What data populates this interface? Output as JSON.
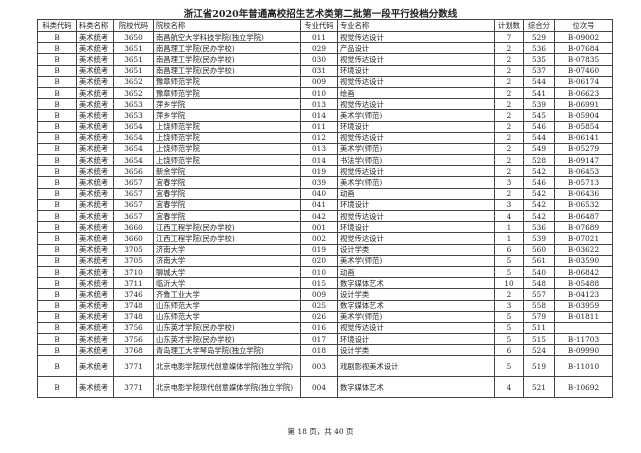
{
  "title": "浙江省2020年普通高校招生艺术类第二批第一段平行投档分数线",
  "headers": [
    "科类代码",
    "科类名称",
    "院校代码",
    "院校名称",
    "专业代码",
    "专业名称",
    "计划数",
    "综合分",
    "位次号"
  ],
  "rows": [
    [
      "B",
      "美术统考",
      "3650",
      "南昌航空大学科技学院(独立学院)",
      "011",
      "视觉传达设计",
      "7",
      "529",
      "B-09002"
    ],
    [
      "B",
      "美术统考",
      "3651",
      "南昌理工学院(民办学校)",
      "029",
      "产品设计",
      "2",
      "536",
      "B-07684"
    ],
    [
      "B",
      "美术统考",
      "3651",
      "南昌理工学院(民办学校)",
      "030",
      "视觉传达设计",
      "2",
      "535",
      "B-07835"
    ],
    [
      "B",
      "美术统考",
      "3651",
      "南昌理工学院(民办学校)",
      "031",
      "环境设计",
      "2",
      "537",
      "B-07460"
    ],
    [
      "B",
      "美术统考",
      "3652",
      "豫章师范学院",
      "009",
      "视觉传达设计",
      "2",
      "544",
      "B-06174"
    ],
    [
      "B",
      "美术统考",
      "3652",
      "豫章师范学院",
      "010",
      "绘画",
      "2",
      "541",
      "B-06623"
    ],
    [
      "B",
      "美术统考",
      "3653",
      "萍乡学院",
      "013",
      "视觉传达设计",
      "2",
      "539",
      "B-06991"
    ],
    [
      "B",
      "美术统考",
      "3653",
      "萍乡学院",
      "014",
      "美术学(师范)",
      "2",
      "545",
      "B-05904"
    ],
    [
      "B",
      "美术统考",
      "3654",
      "上饶师范学院",
      "011",
      "环境设计",
      "2",
      "546",
      "B-05854"
    ],
    [
      "B",
      "美术统考",
      "3654",
      "上饶师范学院",
      "012",
      "视觉传达设计",
      "2",
      "544",
      "B-06141"
    ],
    [
      "B",
      "美术统考",
      "3654",
      "上饶师范学院",
      "013",
      "美术学(师范)",
      "2",
      "549",
      "B-05279"
    ],
    [
      "B",
      "美术统考",
      "3654",
      "上饶师范学院",
      "014",
      "书法学(师范)",
      "2",
      "528",
      "B-09147"
    ],
    [
      "B",
      "美术统考",
      "3656",
      "新余学院",
      "019",
      "视觉传达设计",
      "2",
      "542",
      "B-06453"
    ],
    [
      "B",
      "美术统考",
      "3657",
      "宜春学院",
      "039",
      "美术学(师范)",
      "3",
      "546",
      "B-05713"
    ],
    [
      "B",
      "美术统考",
      "3657",
      "宜春学院",
      "040",
      "动画",
      "2",
      "542",
      "B-06436"
    ],
    [
      "B",
      "美术统考",
      "3657",
      "宜春学院",
      "041",
      "环境设计",
      "3",
      "542",
      "B-06532"
    ],
    [
      "B",
      "美术统考",
      "3657",
      "宜春学院",
      "042",
      "视觉传达设计",
      "4",
      "542",
      "B-06487"
    ],
    [
      "B",
      "美术统考",
      "3660",
      "江西工程学院(民办学校)",
      "001",
      "环境设计",
      "1",
      "536",
      "B-07689"
    ],
    [
      "B",
      "美术统考",
      "3660",
      "江西工程学院(民办学校)",
      "002",
      "视觉传达设计",
      "1",
      "539",
      "B-07021"
    ],
    [
      "B",
      "美术统考",
      "3705",
      "济南大学",
      "019",
      "设计学类",
      "6",
      "560",
      "B-03622"
    ],
    [
      "B",
      "美术统考",
      "3705",
      "济南大学",
      "020",
      "美术学(师范)",
      "5",
      "561",
      "B-03590"
    ],
    [
      "B",
      "美术统考",
      "3710",
      "聊城大学",
      "010",
      "动画",
      "5",
      "540",
      "B-06842"
    ],
    [
      "B",
      "美术统考",
      "3711",
      "临沂大学",
      "015",
      "数字媒体艺术",
      "10",
      "548",
      "B-05488"
    ],
    [
      "B",
      "美术统考",
      "3746",
      "齐鲁工业大学",
      "009",
      "设计学类",
      "2",
      "557",
      "B-04123"
    ],
    [
      "B",
      "美术统考",
      "3748",
      "山东师范大学",
      "025",
      "数字媒体艺术",
      "3",
      "558",
      "B-03959"
    ],
    [
      "B",
      "美术统考",
      "3748",
      "山东师范大学",
      "026",
      "美术学(师范)",
      "5",
      "579",
      "B-01811"
    ],
    [
      "B",
      "美术统考",
      "3756",
      "山东英才学院(民办学校)",
      "016",
      "视觉传达设计",
      "5",
      "511",
      ""
    ],
    [
      "B",
      "美术统考",
      "3756",
      "山东英才学院(民办学校)",
      "017",
      "环境设计",
      "5",
      "515",
      "B-11703"
    ],
    [
      "B",
      "美术统考",
      "3768",
      "青岛理工大学琴岛学院(独立学院)",
      "018",
      "设计学类",
      "6",
      "524",
      "B-09990"
    ],
    [
      "B",
      "美术统考",
      "3771",
      "北京电影学院现代创意媒体学院(独立学院)",
      "003",
      "戏剧影视美术设计",
      "5",
      "519",
      "B-11010"
    ],
    [
      "B",
      "美术统考",
      "3771",
      "北京电影学院现代创意媒体学院(独立学院)",
      "004",
      "数字媒体艺术",
      "4",
      "521",
      "B-10692"
    ]
  ],
  "footer": "第 18 页，共 40 页"
}
